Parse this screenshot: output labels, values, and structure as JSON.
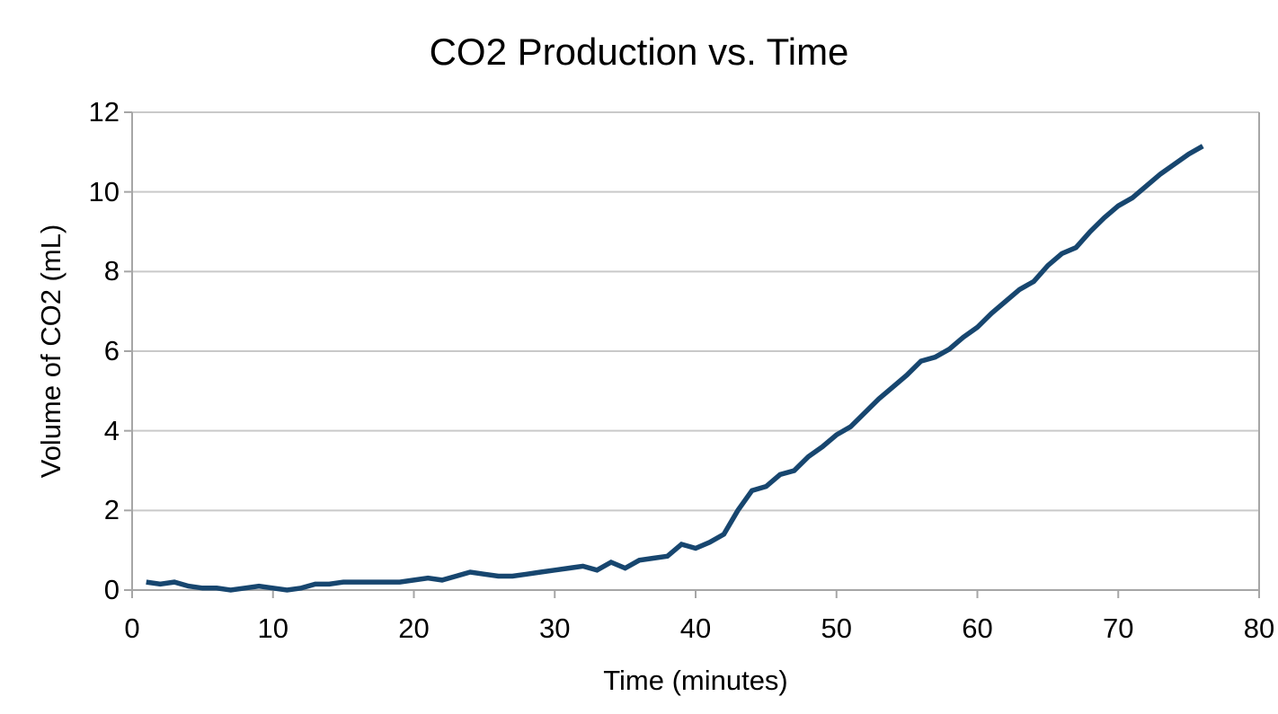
{
  "title": "CO2 Production vs. Time",
  "colors": {
    "series_line": "#17466f",
    "gridline": "#c9c9c9",
    "axis_line": "#a6a6a6",
    "text": "#000000",
    "background": "#ffffff"
  },
  "chart_data": {
    "type": "line",
    "title": "CO2 Production vs. Time",
    "xlabel": "Time (minutes)",
    "ylabel": "Volume of CO2 (mL)",
    "xlim": [
      0,
      80
    ],
    "ylim": [
      0,
      12
    ],
    "x_ticks": [
      0,
      10,
      20,
      30,
      40,
      50,
      60,
      70,
      80
    ],
    "y_ticks": [
      0,
      2,
      4,
      6,
      8,
      10,
      12
    ],
    "grid": "horizontal gridlines at each y tick, light gray",
    "legend_position": "none",
    "series": [
      {
        "name": "Volume of CO2",
        "color": "#17466f",
        "x": [
          1,
          2,
          3,
          4,
          5,
          6,
          7,
          8,
          9,
          10,
          11,
          12,
          13,
          14,
          15,
          16,
          17,
          18,
          19,
          20,
          21,
          22,
          23,
          24,
          25,
          26,
          27,
          28,
          29,
          30,
          31,
          32,
          33,
          34,
          35,
          36,
          37,
          38,
          39,
          40,
          41,
          42,
          43,
          44,
          45,
          46,
          47,
          48,
          49,
          50,
          51,
          52,
          53,
          54,
          55,
          56,
          57,
          58,
          59,
          60,
          61,
          62,
          63,
          64,
          65,
          66,
          67,
          68,
          69,
          70,
          71,
          72,
          73,
          74,
          75,
          76
        ],
        "y": [
          0.2,
          0.15,
          0.2,
          0.1,
          0.05,
          0.05,
          0.0,
          0.05,
          0.1,
          0.05,
          0.0,
          0.05,
          0.15,
          0.15,
          0.2,
          0.2,
          0.2,
          0.2,
          0.2,
          0.25,
          0.3,
          0.25,
          0.35,
          0.45,
          0.4,
          0.35,
          0.35,
          0.4,
          0.45,
          0.5,
          0.55,
          0.6,
          0.5,
          0.7,
          0.55,
          0.75,
          0.8,
          0.85,
          1.15,
          1.05,
          1.2,
          1.4,
          2.0,
          2.5,
          2.6,
          2.9,
          3.0,
          3.35,
          3.6,
          3.9,
          4.1,
          4.45,
          4.8,
          5.1,
          5.4,
          5.75,
          5.85,
          6.05,
          6.35,
          6.6,
          6.95,
          7.25,
          7.55,
          7.75,
          8.15,
          8.45,
          8.6,
          9.0,
          9.35,
          9.65,
          9.85,
          10.15,
          10.45,
          10.7,
          10.95,
          11.15
        ]
      }
    ]
  }
}
